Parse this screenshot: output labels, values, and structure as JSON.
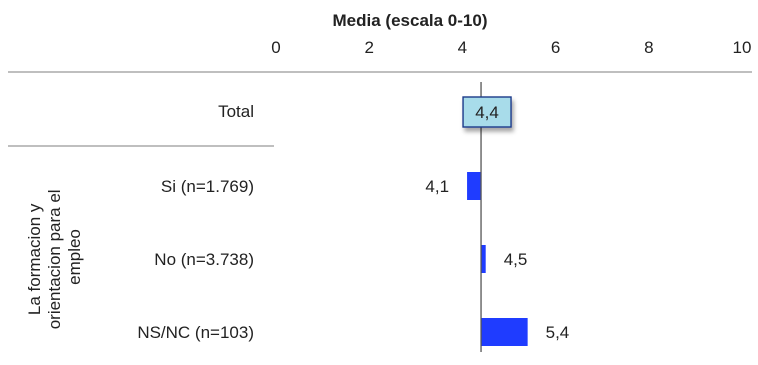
{
  "chart_data": {
    "type": "bar",
    "orientation": "horizontal",
    "title": "Media (escala 0-10)",
    "xlim": [
      0,
      10
    ],
    "ticks": [
      0,
      2,
      4,
      6,
      8,
      10
    ],
    "tick_labels": [
      "0",
      "2",
      "4",
      "6",
      "8",
      "10"
    ],
    "reference_line": 4.4,
    "total": {
      "label": "Total",
      "value": 4.4,
      "value_label": "4,4"
    },
    "group_label": "La formacion y orientacion para el empleo",
    "categories": [
      "Si (n=1.769)",
      "No (n=3.738)",
      "NS/NC (n=103)"
    ],
    "values": [
      4.1,
      4.5,
      5.4
    ],
    "value_labels": [
      "4,1",
      "4,5",
      "5,4"
    ],
    "grid": false,
    "colors": {
      "bar": "#1f3cff",
      "total_box_fill": "#a8dcea",
      "total_box_border": "#1f3a8a",
      "reference_line": "#555555",
      "separator": "#999999"
    }
  }
}
